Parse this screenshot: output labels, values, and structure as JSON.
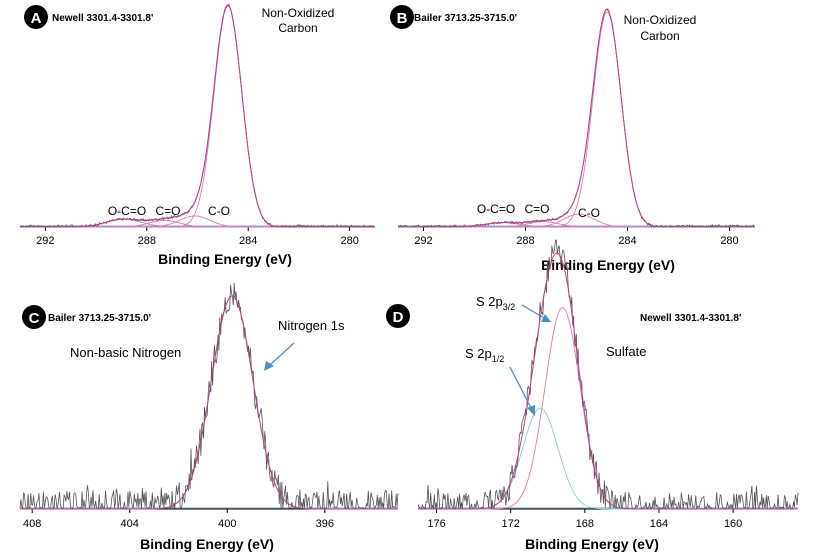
{
  "colors": {
    "raw": "#555555",
    "envelope": "#c0408a",
    "component": "#d97ab5",
    "component2": "#7fd4d0",
    "baseline": "#7fa8c8",
    "arrow": "#4a90c8",
    "badge": "#000000"
  },
  "chart_data": [
    {
      "type": "line",
      "panel": "A",
      "sample": "Newell 3301.4-3301.8'",
      "xlabel": "Binding Energy (eV)",
      "xlim": [
        293,
        279
      ],
      "x_reversed": true,
      "xticks": [
        292,
        288,
        284,
        280
      ],
      "annotations": [
        "Non-Oxidized",
        "Carbon",
        "O-C=O",
        "C=O",
        "C-O"
      ],
      "components": [
        {
          "center": 284.8,
          "height": 1.0,
          "sigma": 0.55
        },
        {
          "center": 286.1,
          "height": 0.05,
          "sigma": 0.6
        },
        {
          "center": 287.3,
          "height": 0.03,
          "sigma": 0.6
        },
        {
          "center": 288.9,
          "height": 0.035,
          "sigma": 0.7
        }
      ],
      "noise": 0.0
    },
    {
      "type": "line",
      "panel": "B",
      "sample": "Bailer 3713.25-3715.0'",
      "xlabel": "Binding Energy (eV)",
      "xlim": [
        293,
        279
      ],
      "x_reversed": true,
      "xticks": [
        292,
        288,
        284,
        280
      ],
      "annotations": [
        "Non-Oxidized",
        "Carbon",
        "O-C=O",
        "C=O",
        "C-O"
      ],
      "components": [
        {
          "center": 284.8,
          "height": 1.0,
          "sigma": 0.55
        },
        {
          "center": 285.9,
          "height": 0.06,
          "sigma": 0.6
        },
        {
          "center": 287.3,
          "height": 0.025,
          "sigma": 0.6
        },
        {
          "center": 288.9,
          "height": 0.02,
          "sigma": 0.7
        }
      ],
      "noise": 0.0
    },
    {
      "type": "line",
      "panel": "C",
      "sample": "Bailer 3713.25-3715.0'",
      "xlabel": "Binding Energy (eV)",
      "xlim": [
        408.5,
        393
      ],
      "x_reversed": true,
      "xticks": [
        408,
        404,
        400,
        396
      ],
      "annotations": [
        "Nitrogen 1s",
        "Non-basic Nitrogen"
      ],
      "components": [
        {
          "center": 399.8,
          "height": 1.0,
          "sigma": 0.85
        }
      ],
      "noise": 0.08
    },
    {
      "type": "line",
      "panel": "D",
      "sample": "Newell 3301.4-3301.8'",
      "xlabel": "Binding Energy (eV)",
      "xlim": [
        177,
        156.5
      ],
      "x_reversed": true,
      "xticks": [
        176,
        172,
        168,
        164,
        160
      ],
      "annotations": [
        "S 2p",
        "3/2",
        "S 2p",
        "1/2",
        "Sulfate"
      ],
      "components": [
        {
          "center": 169.2,
          "height": 0.92,
          "sigma": 0.95
        },
        {
          "center": 170.4,
          "height": 0.46,
          "sigma": 0.95
        }
      ],
      "noise": 0.07
    }
  ]
}
